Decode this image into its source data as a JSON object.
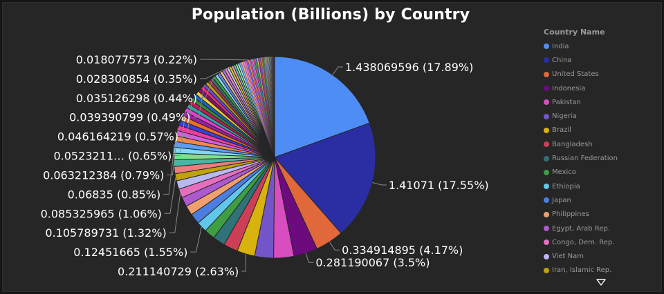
{
  "chart_data": {
    "type": "pie",
    "title": "Population (Billions) by Country",
    "legend_title": "Country Name",
    "legend_placement": "right",
    "slices": [
      {
        "name": "India",
        "value": 1.438069596,
        "label": "1.438069596 (17.89%)",
        "color": "#4e8df5"
      },
      {
        "name": "China",
        "value": 1.41071,
        "label": "1.41071 (17.55%)",
        "color": "#2b2ea3"
      },
      {
        "name": "United States",
        "value": 0.334914895,
        "label": "0.334914895 (4.17%)",
        "color": "#e0683a"
      },
      {
        "name": "Indonesia",
        "value": 0.281190067,
        "label": "0.281190067 (3.5%)",
        "color": "#6c0b7e"
      },
      {
        "name": "Pakistan",
        "value": 0.24,
        "color": "#d84ec1"
      },
      {
        "name": "Nigeria",
        "value": 0.223,
        "color": "#7256c9"
      },
      {
        "name": "Brazil",
        "value": 0.211140729,
        "label": "0.211140729 (2.63%)",
        "color": "#d8b30e"
      },
      {
        "name": "Bangladesh",
        "value": 0.17,
        "color": "#cc3f56"
      },
      {
        "name": "Russian Federation",
        "value": 0.144,
        "color": "#2f7277"
      },
      {
        "name": "Mexico",
        "value": 0.128,
        "color": "#3f9e42"
      },
      {
        "name": "Ethiopia",
        "value": 0.12451665,
        "label": "0.12451665 (1.55%)",
        "color": "#61c7ea"
      },
      {
        "name": "Japan",
        "value": 0.124,
        "color": "#4b7ee0"
      },
      {
        "name": "Philippines",
        "value": 0.115,
        "color": "#f0a06e"
      },
      {
        "name": "Egypt, Arab Rep.",
        "value": 0.112,
        "color": "#ad5ad0"
      },
      {
        "name": "Congo, Dem. Rep.",
        "value": 0.105789731,
        "label": "0.105789731 (1.32%)",
        "color": "#e46fbe"
      },
      {
        "name": "Viet Nam",
        "value": 0.1,
        "color": "#b8b8f2"
      },
      {
        "name": "Iran, Islamic Rep.",
        "value": 0.085325965,
        "label": "0.085325965 (1.06%)",
        "color": "#c0a20a"
      },
      {
        "value": 0.085,
        "color": "#ea7d7d"
      },
      {
        "value": 0.08,
        "color": "#48b6a4"
      },
      {
        "value": 0.075,
        "color": "#7fe08b"
      },
      {
        "value": 0.07,
        "color": "#7fd8f5"
      },
      {
        "value": 0.06835,
        "label": "0.06835 (0.85%)",
        "color": "#5a9ef5"
      },
      {
        "value": 0.067,
        "color": "#f0884a"
      },
      {
        "value": 0.065,
        "color": "#d25fe0"
      },
      {
        "value": 0.063212384,
        "label": "0.063212384 (0.79%)",
        "color": "#f03ca0"
      },
      {
        "value": 0.06,
        "color": "#3a3fd8"
      },
      {
        "value": 0.058,
        "color": "#f07020"
      },
      {
        "value": 0.055,
        "color": "#9b1fa3"
      },
      {
        "value": 0.0523211,
        "label": "0.0523211… (0.65%)",
        "color": "#e040d0"
      },
      {
        "value": 0.05,
        "color": "#3aa0a0"
      },
      {
        "value": 0.048,
        "color": "#c21a5a"
      },
      {
        "value": 0.046164219,
        "label": "0.046164219 (0.57%)",
        "color": "#2f8a3a"
      },
      {
        "value": 0.045,
        "color": "#1f5fbf"
      },
      {
        "value": 0.044,
        "color": "#e8d030"
      },
      {
        "value": 0.042,
        "color": "#8a0f6a"
      },
      {
        "value": 0.04,
        "color": "#e0307a"
      },
      {
        "value": 0.039390799,
        "label": "0.039390799 (0.49%)",
        "color": "#6b48d6"
      },
      {
        "value": 0.038,
        "color": "#b8a010"
      },
      {
        "value": 0.037,
        "color": "#a83a4a"
      },
      {
        "value": 0.036,
        "color": "#3b6e6e"
      },
      {
        "value": 0.035126298,
        "label": "0.035126298 (0.44%)",
        "color": "#3aa04a"
      },
      {
        "value": 0.034,
        "color": "#8ad0f0"
      },
      {
        "value": 0.033,
        "color": "#5a8ae8"
      },
      {
        "value": 0.032,
        "color": "#f5b88a"
      },
      {
        "value": 0.031,
        "color": "#b070d8"
      },
      {
        "value": 0.03,
        "color": "#e890d0"
      },
      {
        "value": 0.029,
        "color": "#c8c8f5"
      },
      {
        "value": 0.028300854,
        "label": "0.028300854 (0.35%)",
        "color": "#d8c020"
      },
      {
        "value": 0.027,
        "color": "#f0a0a0"
      },
      {
        "value": 0.026,
        "color": "#60c8b8"
      },
      {
        "value": 0.025,
        "color": "#a0f0a8"
      },
      {
        "value": 0.024,
        "color": "#a8e8f8"
      },
      {
        "value": 0.023,
        "color": "#7aa8f8"
      },
      {
        "value": 0.022,
        "color": "#f8a870"
      },
      {
        "value": 0.021,
        "color": "#e080f0"
      },
      {
        "value": 0.02,
        "color": "#f870b8"
      },
      {
        "value": 0.019,
        "color": "#6a70e8"
      },
      {
        "value": 0.018077573,
        "label": "0.018077573 (0.22%)",
        "color": "#f89040"
      },
      {
        "value": 0.017,
        "color": "#c050c8"
      },
      {
        "value": 0.016,
        "color": "#f060e0"
      },
      {
        "value": 0.015,
        "color": "#60c0c0"
      },
      {
        "value": 0.0145,
        "color": "#e04080"
      },
      {
        "value": 0.014,
        "color": "#50b060"
      },
      {
        "value": 0.0135,
        "color": "#4080e0"
      },
      {
        "value": 0.013,
        "color": "#f0e060"
      },
      {
        "value": 0.0125,
        "color": "#b03090"
      },
      {
        "value": 0.012,
        "color": "#f05090"
      },
      {
        "value": 0.0115,
        "color": "#9070f0"
      },
      {
        "value": 0.011,
        "color": "#d0b840"
      },
      {
        "value": 0.0105,
        "color": "#c06070"
      },
      {
        "value": 0.01,
        "color": "#5a9090"
      },
      {
        "value": 0.0095,
        "color": "#60c070"
      },
      {
        "value": 0.009,
        "color": "#b0e0f8"
      },
      {
        "value": 0.0085,
        "color": "#80a8f0"
      },
      {
        "value": 0.008,
        "color": "#f8c8a0"
      },
      {
        "value": 0.0075,
        "color": "#c890e0"
      },
      {
        "value": 0.007,
        "color": "#f0b0e0"
      },
      {
        "value": 0.0065,
        "color": "#d8d8f8"
      },
      {
        "value": 0.006,
        "color": "#e0d040"
      },
      {
        "value": 0.0055,
        "color": "#f8b8b8"
      },
      {
        "value": 0.005,
        "color": "#80d8c8"
      },
      {
        "value": 0.0048,
        "color": "#c0f8c0"
      },
      {
        "value": 0.0045,
        "color": "#c0f0f8"
      },
      {
        "value": 0.0042,
        "color": "#a0c0f8"
      },
      {
        "value": 0.004,
        "color": "#f8c090"
      },
      {
        "value": 0.0038,
        "color": "#e8a0f8"
      },
      {
        "value": 0.0035,
        "color": "#f8a0d0"
      },
      {
        "value": 0.0032,
        "color": "#9098f0"
      },
      {
        "value": 0.003,
        "color": "#f8a860"
      },
      {
        "value": 0.0028,
        "color": "#d070d8"
      },
      {
        "value": 0.0026,
        "color": "#f880e8"
      },
      {
        "value": 0.0024,
        "color": "#80d0d0"
      },
      {
        "value": 0.0022,
        "color": "#f070a0"
      },
      {
        "value": 0.002,
        "color": "#70c080"
      },
      {
        "value": 0.0018,
        "color": "#70a0f0"
      },
      {
        "value": 0.0016,
        "color": "#f8f080"
      },
      {
        "value": 0.0014,
        "color": "#d050b0"
      },
      {
        "value": 0.0012,
        "color": "#f880b0"
      },
      {
        "value": 0.001,
        "color": "#b090f8"
      },
      {
        "value": 0.0009,
        "color": "#e0d070"
      },
      {
        "value": 0.0008,
        "color": "#d08090"
      },
      {
        "value": 0.0007,
        "color": "#80b0b0"
      },
      {
        "value": 0.0006,
        "color": "#90d8a0"
      },
      {
        "value": 0.0005,
        "color": "#d0f0f8"
      },
      {
        "value": 0.0004,
        "color": "#a0b8f8"
      }
    ]
  },
  "legend_scroll_icon": "triangle-down-icon"
}
